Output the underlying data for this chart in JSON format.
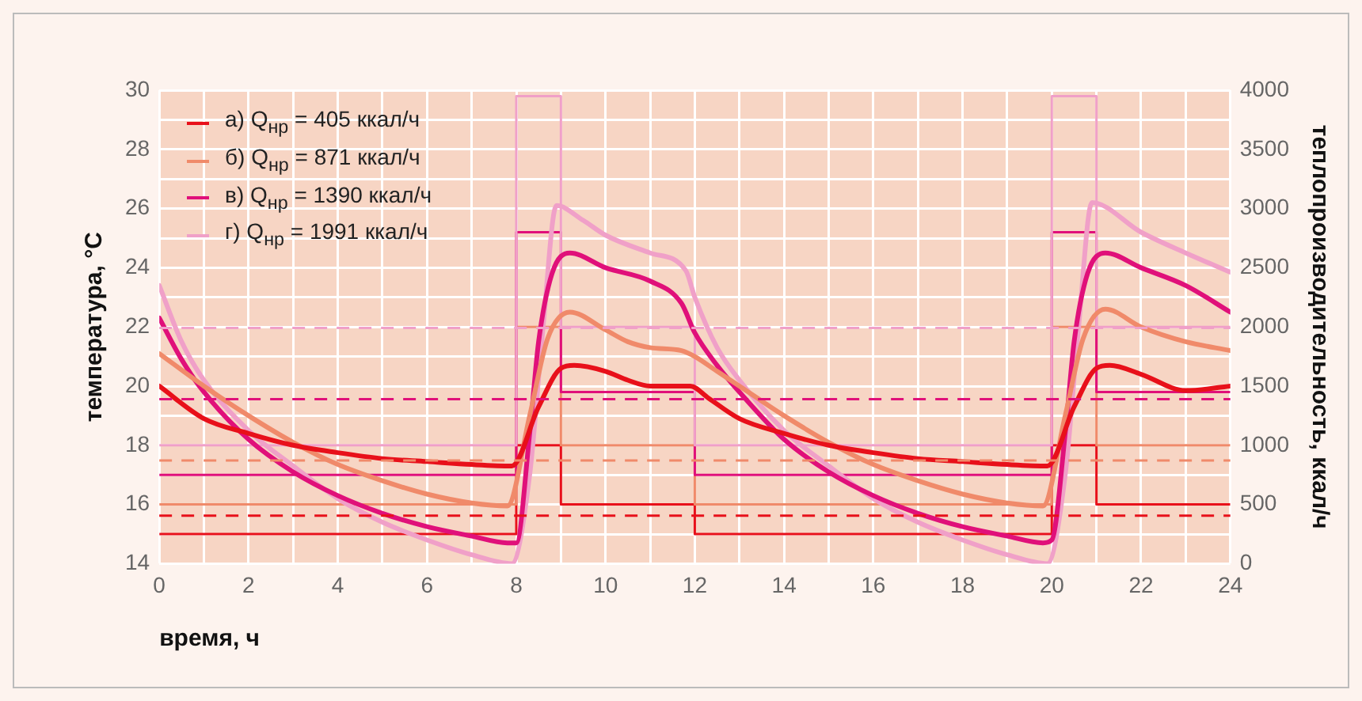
{
  "chart_data": {
    "type": "line",
    "xlabel": "время, ч",
    "ylabel": "температура, °С",
    "y2label": "теплопроизводительность, ккал/ч",
    "xlim": [
      0,
      24
    ],
    "xticks": [
      0,
      {
        "value": 1,
        "label": null
      },
      2,
      {
        "value": 3,
        "label": null
      },
      4,
      {
        "value": 5,
        "label": null
      },
      6,
      {
        "value": 7,
        "label": null
      },
      8,
      {
        "value": 9,
        "label": null
      },
      10,
      {
        "value": 11,
        "label": null
      },
      12,
      {
        "value": 13,
        "label": null
      },
      14,
      {
        "value": 15,
        "label": null
      },
      16,
      {
        "value": 17,
        "label": null
      },
      18,
      {
        "value": 19,
        "label": null
      },
      20,
      {
        "value": 21,
        "label": null
      },
      22,
      {
        "value": 23,
        "label": null
      },
      24
    ],
    "ylim": [
      14,
      30
    ],
    "yticks": [
      14,
      {
        "value": 15,
        "label": null
      },
      16,
      {
        "value": 17,
        "label": null
      },
      18,
      {
        "value": 19,
        "label": null
      },
      20,
      {
        "value": 21,
        "label": null
      },
      22,
      {
        "value": 23,
        "label": null
      },
      24,
      {
        "value": 25,
        "label": null
      },
      26,
      {
        "value": 27,
        "label": null
      },
      28,
      {
        "value": 29,
        "label": null
      },
      30
    ],
    "y2lim": [
      0,
      4000
    ],
    "y2ticks": [
      0,
      500,
      1000,
      1500,
      2000,
      2500,
      3000,
      3500,
      4000
    ],
    "grid": true,
    "legend": "top left",
    "line_style": "solid",
    "ref_lines": [
      {
        "axis": "y2",
        "value": 405,
        "color": "#e8101a",
        "line_style": "dashed"
      },
      {
        "axis": "y2",
        "value": 871,
        "color": "#f08a6a",
        "line_style": "dashed"
      },
      {
        "axis": "y2",
        "value": 1390,
        "color": "#e0107a",
        "line_style": "dashed"
      },
      {
        "axis": "y2",
        "value": 1991,
        "color": "#f0a0c8",
        "line_style": "dashed"
      }
    ],
    "series": [
      {
        "type": "step",
        "axis": "y2",
        "color": "#f0a0c8",
        "x": [
          0,
          8,
          9,
          12,
          20,
          21,
          24
        ],
        "values": [
          1000,
          3950,
          2000,
          1000,
          3950,
          2000,
          2000
        ]
      },
      {
        "type": "step",
        "axis": "y2",
        "color": "#e0107a",
        "x": [
          0,
          8,
          9,
          12,
          20,
          21,
          24
        ],
        "values": [
          750,
          2800,
          1450,
          750,
          2800,
          1450,
          1450
        ]
      },
      {
        "type": "step",
        "axis": "y2",
        "color": "#f08a6a",
        "x": [
          0,
          8,
          9,
          12,
          20,
          21,
          24
        ],
        "values": [
          500,
          2000,
          1000,
          500,
          2000,
          1000,
          1000
        ]
      },
      {
        "type": "step",
        "axis": "y2",
        "color": "#e8101a",
        "x": [
          0,
          8,
          9,
          12,
          20,
          21,
          24
        ],
        "values": [
          250,
          1000,
          500,
          250,
          1000,
          500,
          500
        ]
      },
      {
        "name": "а) Q$_{нр}$ = 405 ккал/ч",
        "color": "#e8101a",
        "x": [
          0,
          1,
          2,
          3,
          4,
          5,
          6,
          7,
          7.9,
          8.5,
          9,
          9.3,
          10,
          10.5,
          11,
          11.9,
          12.3,
          13,
          14,
          15,
          16,
          17,
          18,
          19,
          19.9,
          20.5,
          21,
          21.3,
          22,
          23,
          24
        ],
        "values": [
          20.0,
          18.9,
          18.4,
          18.0,
          17.75,
          17.55,
          17.45,
          17.35,
          17.3,
          19.3,
          20.6,
          20.7,
          20.5,
          20.2,
          20.0,
          20.0,
          19.6,
          18.9,
          18.4,
          18.0,
          17.75,
          17.55,
          17.45,
          17.35,
          17.3,
          19.3,
          20.6,
          20.7,
          20.4,
          19.85,
          20.0
        ]
      },
      {
        "name": "б) Q$_{нр}$ = 871 ккал/ч",
        "color": "#f08a6a",
        "x": [
          0,
          1,
          2,
          3,
          4,
          5,
          6,
          7,
          7.8,
          8.3,
          8.7,
          9.2,
          10,
          10.5,
          11,
          11.7,
          12,
          12.5,
          13,
          14,
          15,
          16,
          17,
          18,
          19,
          19.8,
          20.3,
          20.7,
          21.2,
          22,
          23,
          24
        ],
        "values": [
          21.1,
          20.0,
          19.0,
          18.1,
          17.35,
          16.8,
          16.35,
          16.05,
          15.95,
          19.0,
          21.6,
          22.5,
          21.9,
          21.5,
          21.3,
          21.2,
          21.0,
          20.5,
          20.0,
          19.0,
          18.1,
          17.35,
          16.8,
          16.35,
          16.05,
          15.95,
          19.0,
          21.6,
          22.6,
          22.0,
          21.5,
          21.2
        ]
      },
      {
        "name": "в) Q$_{нр}$ = 1390 ккал/ч",
        "color": "#e0107a",
        "x": [
          0,
          0.5,
          1,
          2,
          3,
          4,
          5,
          6,
          7,
          7.8,
          8,
          8.3,
          8.5,
          8.8,
          9.2,
          10,
          11,
          11.7,
          12,
          12.5,
          13,
          14,
          15,
          16,
          17,
          18,
          19,
          19.8,
          20,
          20.3,
          20.5,
          20.8,
          21.2,
          22,
          23,
          24
        ],
        "values": [
          22.3,
          20.9,
          19.8,
          18.2,
          17.1,
          16.3,
          15.7,
          15.25,
          14.93,
          14.7,
          14.7,
          18.4,
          21.5,
          23.8,
          24.5,
          24.0,
          23.55,
          22.8,
          21.8,
          20.7,
          19.8,
          18.2,
          17.1,
          16.3,
          15.7,
          15.25,
          14.93,
          14.7,
          14.8,
          18.4,
          21.5,
          23.8,
          24.5,
          24.0,
          23.4,
          22.5
        ]
      },
      {
        "name": "г) Q$_{нр}$ = 1991 ккал/ч",
        "color": "#f0a0c8",
        "x": [
          0,
          0.5,
          1,
          2,
          3,
          4,
          5,
          6,
          7,
          7.9,
          8.3,
          8.6,
          8.9,
          9.5,
          10,
          11,
          11.8,
          12,
          12.5,
          13,
          14,
          15,
          16,
          17,
          18,
          19,
          19.9,
          20.3,
          20.6,
          20.9,
          22,
          23,
          24
        ],
        "values": [
          23.4,
          21.5,
          20.2,
          18.5,
          17.3,
          16.2,
          15.4,
          14.8,
          14.3,
          14.0,
          17.0,
          22.0,
          26.1,
          25.6,
          25.1,
          24.5,
          23.9,
          23.0,
          21.3,
          20.2,
          18.5,
          17.3,
          16.2,
          15.4,
          14.8,
          14.3,
          14.0,
          17.0,
          22.0,
          26.2,
          25.2,
          24.5,
          23.85
        ]
      }
    ]
  }
}
